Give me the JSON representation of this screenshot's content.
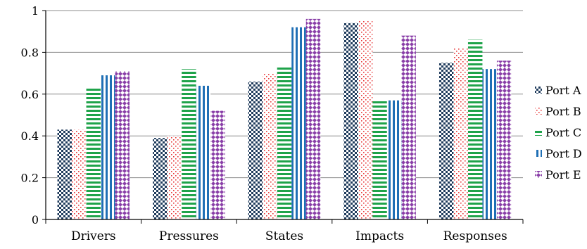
{
  "chart_data": {
    "type": "bar",
    "categories": [
      "Drivers",
      "Pressures",
      "States",
      "Impacts",
      "Responses"
    ],
    "series": [
      {
        "name": "Port A",
        "values": [
          0.43,
          0.39,
          0.66,
          0.94,
          0.75
        ],
        "color": "#1f3b5c",
        "pattern": "checker"
      },
      {
        "name": "Port B",
        "values": [
          0.43,
          0.4,
          0.7,
          0.95,
          0.82
        ],
        "color": "#e8393a",
        "pattern": "dots"
      },
      {
        "name": "Port C",
        "values": [
          0.63,
          0.72,
          0.73,
          0.57,
          0.86
        ],
        "color": "#1fa34a",
        "pattern": "hlines"
      },
      {
        "name": "Port D",
        "values": [
          0.69,
          0.64,
          0.92,
          0.57,
          0.72
        ],
        "color": "#1f6fb5",
        "pattern": "vlines"
      },
      {
        "name": "Port E",
        "values": [
          0.71,
          0.52,
          0.96,
          0.88,
          0.76
        ],
        "color": "#8a3fa8",
        "pattern": "diamonds"
      }
    ],
    "y_ticks": [
      "0",
      "0.2",
      "0.4",
      "0.6",
      "0.8",
      "1"
    ],
    "ylim": [
      0,
      1
    ],
    "grid": true,
    "legend_position": "right"
  }
}
